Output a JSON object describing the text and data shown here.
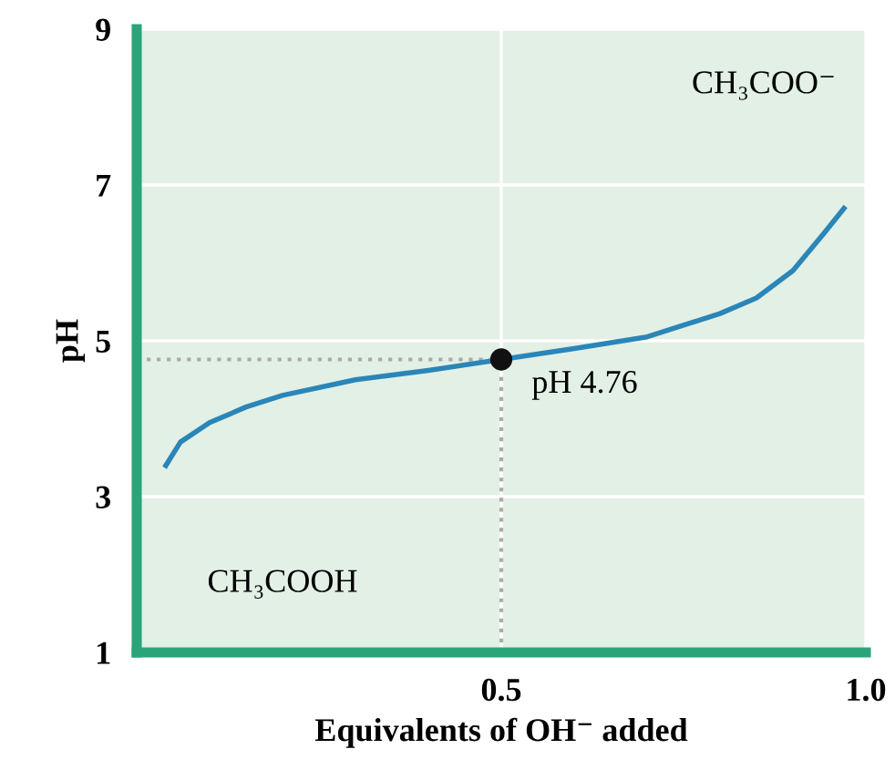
{
  "chart_data": {
    "type": "line",
    "xlabel": "Equivalents of OH⁻ added",
    "ylabel": "pH",
    "xlim": [
      0,
      1
    ],
    "xticks": [
      0.5,
      {
        "value": 1.0,
        "label": "1.0"
      }
    ],
    "ylim": [
      1,
      9
    ],
    "yticks": [
      1,
      3,
      5,
      7,
      9
    ],
    "grid": true,
    "legend": false,
    "series": [
      {
        "color": "#2a86b8",
        "marker": "none",
        "line_style": "solid",
        "x": [
          0.04,
          0.06,
          0.1,
          0.15,
          0.2,
          0.3,
          0.4,
          0.5,
          0.6,
          0.7,
          0.8,
          0.85,
          0.9,
          0.94,
          0.97
        ],
        "values": [
          3.4,
          3.7,
          3.95,
          4.15,
          4.3,
          4.5,
          4.62,
          4.76,
          4.9,
          5.05,
          5.35,
          5.55,
          5.9,
          6.35,
          6.7
        ]
      },
      {
        "type": "scatter",
        "color": "#111111",
        "marker": "circle",
        "x": [
          0.5
        ],
        "values": [
          4.76
        ]
      }
    ],
    "ref_lines": [
      {
        "axis": "x",
        "value": 0.5,
        "color": "#aaaaaa",
        "line_style": "dotted"
      },
      {
        "axis": "y",
        "value": 4.76,
        "color": "#aaaaaa",
        "line_style": "dotted"
      }
    ],
    "annotations": [
      {
        "text": "pH 4.76",
        "x": 0.5,
        "y": 4.76
      },
      "CH₃COO⁻",
      "CH₃COOH"
    ]
  }
}
